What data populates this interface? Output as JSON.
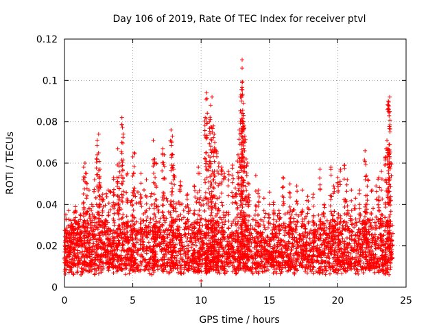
{
  "chart_data": {
    "type": "scatter",
    "title": "Day 106 of 2019, Rate Of TEC Index for receiver ptvl",
    "xlabel": "GPS time / hours",
    "ylabel": "ROTI / TECUs",
    "xlim": [
      0,
      25
    ],
    "ylim": [
      0,
      0.12
    ],
    "xticks": [
      "0",
      "5",
      "10",
      "15",
      "20",
      "25"
    ],
    "yticks": [
      "0",
      "0.02",
      "0.04",
      "0.06",
      "0.08",
      "0.1",
      "0.12"
    ],
    "grid": true,
    "marker": "+",
    "series": [
      {
        "name": "ROTI",
        "color": "#ff0000",
        "points": [
          [
            0.1,
            0.012
          ],
          [
            0.1,
            0.035
          ],
          [
            0.3,
            0.037
          ],
          [
            0.5,
            0.026
          ],
          [
            0.7,
            0.036
          ],
          [
            0.8,
            0.039
          ],
          [
            1.0,
            0.031
          ],
          [
            1.4,
            0.058
          ],
          [
            1.5,
            0.06
          ],
          [
            1.6,
            0.055
          ],
          [
            1.8,
            0.047
          ],
          [
            2.0,
            0.04
          ],
          [
            2.2,
            0.052
          ],
          [
            2.4,
            0.071
          ],
          [
            2.5,
            0.074
          ],
          [
            2.6,
            0.057
          ],
          [
            2.8,
            0.045
          ],
          [
            3.2,
            0.047
          ],
          [
            3.6,
            0.053
          ],
          [
            3.9,
            0.067
          ],
          [
            4.0,
            0.06
          ],
          [
            4.2,
            0.082
          ],
          [
            4.3,
            0.074
          ],
          [
            4.6,
            0.055
          ],
          [
            5.0,
            0.063
          ],
          [
            5.1,
            0.065
          ],
          [
            5.6,
            0.055
          ],
          [
            6.0,
            0.052
          ],
          [
            6.5,
            0.071
          ],
          [
            6.6,
            0.062
          ],
          [
            6.7,
            0.06
          ],
          [
            7.2,
            0.067
          ],
          [
            7.3,
            0.064
          ],
          [
            7.8,
            0.076
          ],
          [
            7.9,
            0.073
          ],
          [
            8.0,
            0.057
          ],
          [
            8.5,
            0.051
          ],
          [
            9.0,
            0.045
          ],
          [
            9.5,
            0.049
          ],
          [
            9.8,
            0.058
          ],
          [
            9.9,
            0.055
          ],
          [
            10.0,
            0.003
          ],
          [
            10.3,
            0.082
          ],
          [
            10.4,
            0.094
          ],
          [
            10.6,
            0.08
          ],
          [
            10.7,
            0.088
          ],
          [
            10.8,
            0.092
          ],
          [
            10.9,
            0.078
          ],
          [
            11.0,
            0.07
          ],
          [
            11.1,
            0.066
          ],
          [
            11.3,
            0.06
          ],
          [
            11.5,
            0.058
          ],
          [
            11.7,
            0.055
          ],
          [
            12.0,
            0.056
          ],
          [
            12.3,
            0.059
          ],
          [
            12.5,
            0.048
          ],
          [
            12.7,
            0.064
          ],
          [
            12.8,
            0.076
          ],
          [
            12.9,
            0.093
          ],
          [
            13.0,
            0.11
          ],
          [
            13.0,
            0.106
          ],
          [
            13.0,
            0.099
          ],
          [
            13.1,
            0.089
          ],
          [
            13.1,
            0.083
          ],
          [
            13.2,
            0.073
          ],
          [
            13.3,
            0.062
          ],
          [
            13.4,
            0.06
          ],
          [
            13.5,
            0.05
          ],
          [
            14.0,
            0.054
          ],
          [
            14.2,
            0.047
          ],
          [
            14.6,
            0.043
          ],
          [
            15.0,
            0.046
          ],
          [
            15.3,
            0.041
          ],
          [
            15.7,
            0.037
          ],
          [
            16.0,
            0.053
          ],
          [
            16.5,
            0.05
          ],
          [
            17.0,
            0.049
          ],
          [
            17.4,
            0.047
          ],
          [
            17.8,
            0.044
          ],
          [
            18.2,
            0.045
          ],
          [
            18.7,
            0.057
          ],
          [
            19.0,
            0.04
          ],
          [
            19.5,
            0.058
          ],
          [
            19.7,
            0.049
          ],
          [
            20.0,
            0.053
          ],
          [
            20.2,
            0.057
          ],
          [
            20.5,
            0.059
          ],
          [
            20.7,
            0.052
          ],
          [
            21.0,
            0.047
          ],
          [
            21.3,
            0.043
          ],
          [
            21.6,
            0.047
          ],
          [
            22.0,
            0.066
          ],
          [
            22.1,
            0.054
          ],
          [
            22.2,
            0.052
          ],
          [
            22.5,
            0.047
          ],
          [
            22.8,
            0.049
          ],
          [
            23.0,
            0.053
          ],
          [
            23.2,
            0.056
          ],
          [
            23.5,
            0.063
          ],
          [
            23.6,
            0.071
          ],
          [
            23.7,
            0.088
          ],
          [
            23.7,
            0.09
          ],
          [
            23.8,
            0.092
          ],
          [
            23.8,
            0.085
          ],
          [
            23.9,
            0.06
          ],
          [
            24.0,
            0.03
          ]
        ],
        "band": {
          "description": "dense cluster of points across the whole day",
          "typical_min": 0.006,
          "typical_max": 0.035,
          "upper_envelope": [
            [
              0,
              0.028
            ],
            [
              1,
              0.034
            ],
            [
              2,
              0.042
            ],
            [
              3,
              0.046
            ],
            [
              4,
              0.05
            ],
            [
              5,
              0.05
            ],
            [
              6,
              0.048
            ],
            [
              7,
              0.044
            ],
            [
              8,
              0.042
            ],
            [
              9,
              0.04
            ],
            [
              10,
              0.044
            ],
            [
              11,
              0.048
            ],
            [
              12,
              0.046
            ],
            [
              13,
              0.05
            ],
            [
              14,
              0.038
            ],
            [
              15,
              0.036
            ],
            [
              16,
              0.04
            ],
            [
              17,
              0.04
            ],
            [
              18,
              0.038
            ],
            [
              19,
              0.036
            ],
            [
              20,
              0.046
            ],
            [
              21,
              0.04
            ],
            [
              22,
              0.034
            ],
            [
              23,
              0.044
            ],
            [
              24,
              0.03
            ]
          ]
        }
      }
    ]
  }
}
